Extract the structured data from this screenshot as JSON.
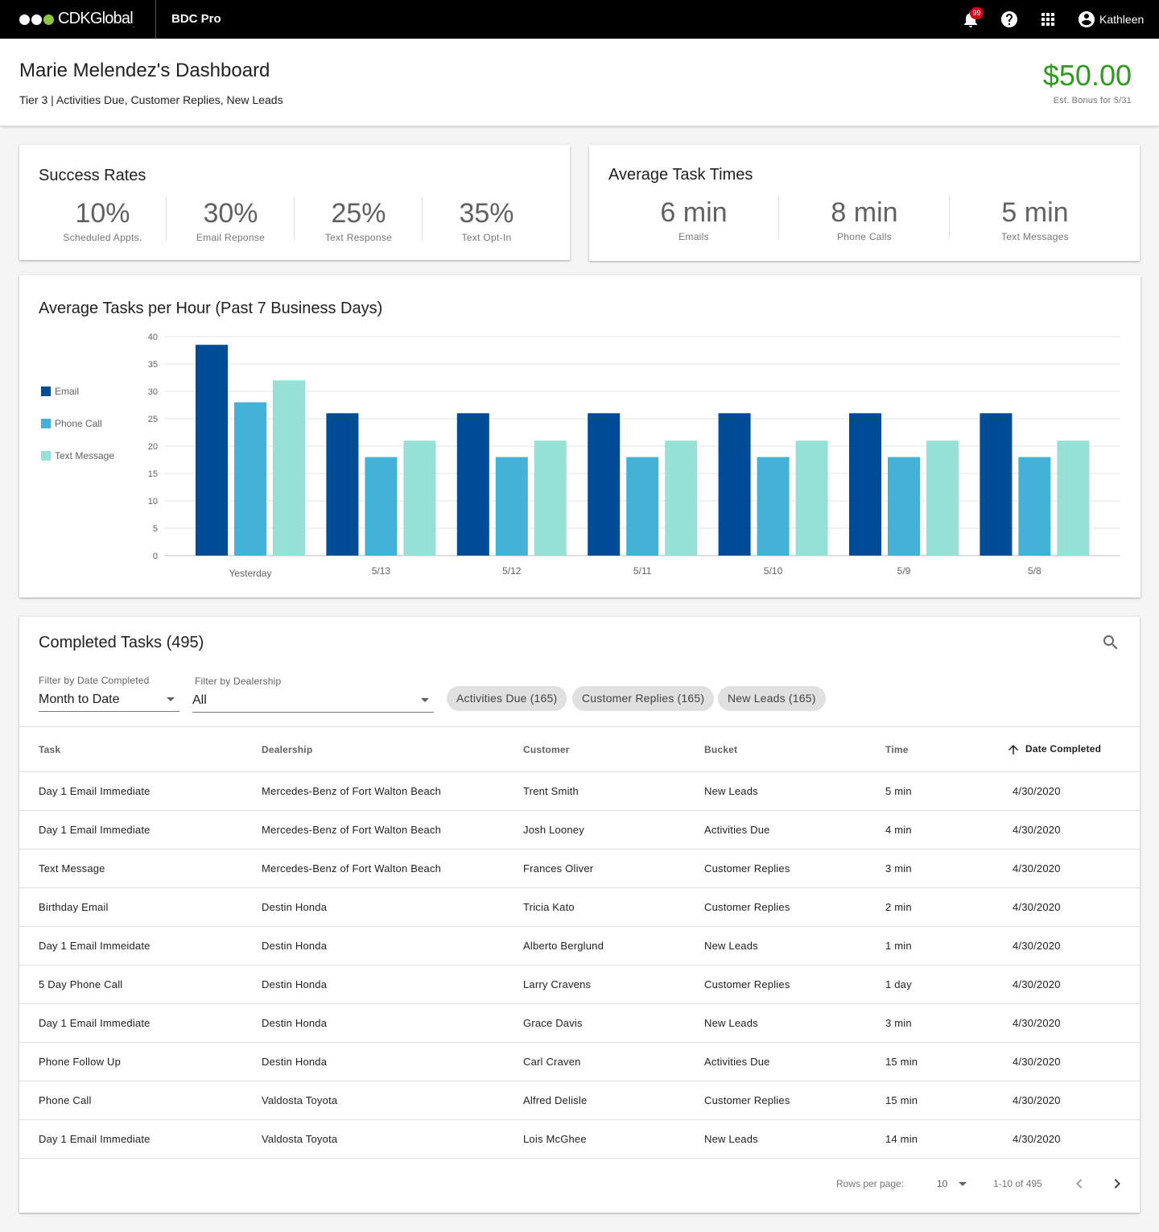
{
  "topbar": {
    "brand": "CDKGlobal",
    "brand_mark": ".",
    "app_name": "BDC Pro",
    "notification_count": "99",
    "user_name": "Kathleen",
    "icons": [
      "bell-icon",
      "help-icon",
      "apps-grid-icon",
      "account-circle-icon"
    ]
  },
  "header": {
    "title": "Marie Melendez's Dashboard",
    "subtitle": "Tier 3 | Activities Due, Customer Replies, New Leads",
    "bonus_amount": "$50.00",
    "bonus_label": "Est. Bonus for 5/31"
  },
  "success_rates": {
    "title": "Success Rates",
    "items": [
      {
        "value": "10%",
        "label": "Scheduled Appts."
      },
      {
        "value": "30%",
        "label": "Email Reponse"
      },
      {
        "value": "25%",
        "label": "Text Response"
      },
      {
        "value": "35%",
        "label": "Text Opt-In"
      }
    ]
  },
  "task_times": {
    "title": "Average Task Times",
    "items": [
      {
        "value": "6 min",
        "label": "Emails"
      },
      {
        "value": "8 min",
        "label": "Phone Calls"
      },
      {
        "value": "5 min",
        "label": "Text Messages"
      }
    ]
  },
  "chart_data": {
    "type": "bar",
    "title": "Average Tasks per Hour (Past 7 Business Days)",
    "categories": [
      "Yesterday",
      "5/13",
      "5/12",
      "5/11",
      "5/10",
      "5/9",
      "5/8"
    ],
    "series": [
      {
        "name": "Email",
        "color": "#004c97",
        "values": [
          38.5,
          26,
          26,
          26,
          26,
          26,
          26
        ]
      },
      {
        "name": "Phone Call",
        "color": "#43b2d6",
        "values": [
          28,
          18,
          18,
          18,
          18,
          18,
          18
        ]
      },
      {
        "name": "Text Message",
        "color": "#97e0d5",
        "values": [
          32,
          21,
          21,
          21,
          21,
          21,
          21
        ]
      }
    ],
    "ylim": [
      0,
      40
    ],
    "yticks": [
      "0",
      "5",
      "10",
      "15",
      "20",
      "25",
      "30",
      "35",
      "40"
    ],
    "grid": true,
    "legend": "left"
  },
  "tasks": {
    "title": "Completed Tasks (495)",
    "filter_date_label": "Filter by Date Completed",
    "filter_date_value": "Month to Date",
    "filter_dealer_label": "Filter by Dealership",
    "filter_dealer_value": "All",
    "chips": [
      "Activities Due (165)",
      "Customer Replies (165)",
      "New Leads (165)"
    ],
    "columns": [
      "Task",
      "Dealership",
      "Customer",
      "Bucket",
      "Time",
      "Date Completed"
    ],
    "rows": [
      [
        "Day 1 Email Immediate",
        "Mercedes-Benz of Fort Walton Beach",
        "Trent Smith",
        "New Leads",
        "5 min",
        "4/30/2020"
      ],
      [
        "Day 1 Email Immediate",
        "Mercedes-Benz of Fort Walton Beach",
        "Josh Looney",
        "Activities Due",
        "4 min",
        "4/30/2020"
      ],
      [
        "Text Message",
        "Mercedes-Benz of Fort Walton Beach",
        "Frances Oliver",
        "Customer Replies",
        "3 min",
        "4/30/2020"
      ],
      [
        "Birthday Email",
        "Destin Honda",
        "Tricia Kato",
        "Customer Replies",
        "2 min",
        "4/30/2020"
      ],
      [
        "Day 1 Email Immeidate",
        "Destin Honda",
        "Alberto Berglund",
        "New Leads",
        "1 min",
        "4/30/2020"
      ],
      [
        "5 Day Phone Call",
        "Destin Honda",
        "Larry Cravens",
        "Customer Replies",
        "1 day",
        "4/30/2020"
      ],
      [
        "Day 1 Email Immediate",
        "Destin Honda",
        "Grace Davis",
        "New Leads",
        "3 min",
        "4/30/2020"
      ],
      [
        "Phone Follow Up",
        "Destin Honda",
        "Carl Craven",
        "Activities Due",
        "15 min",
        "4/30/2020"
      ],
      [
        "Phone Call",
        "Valdosta Toyota",
        "Alfred Delisle",
        "Customer Replies",
        "15 min",
        "4/30/2020"
      ],
      [
        "Day 1 Email Immediate",
        "Valdosta Toyota",
        "Lois McGhee",
        "New Leads",
        "14 min",
        "4/30/2020"
      ]
    ],
    "rows_per_page_label": "Rows per page:",
    "rows_per_page_value": "10",
    "range_label": "1-10 of 495"
  }
}
